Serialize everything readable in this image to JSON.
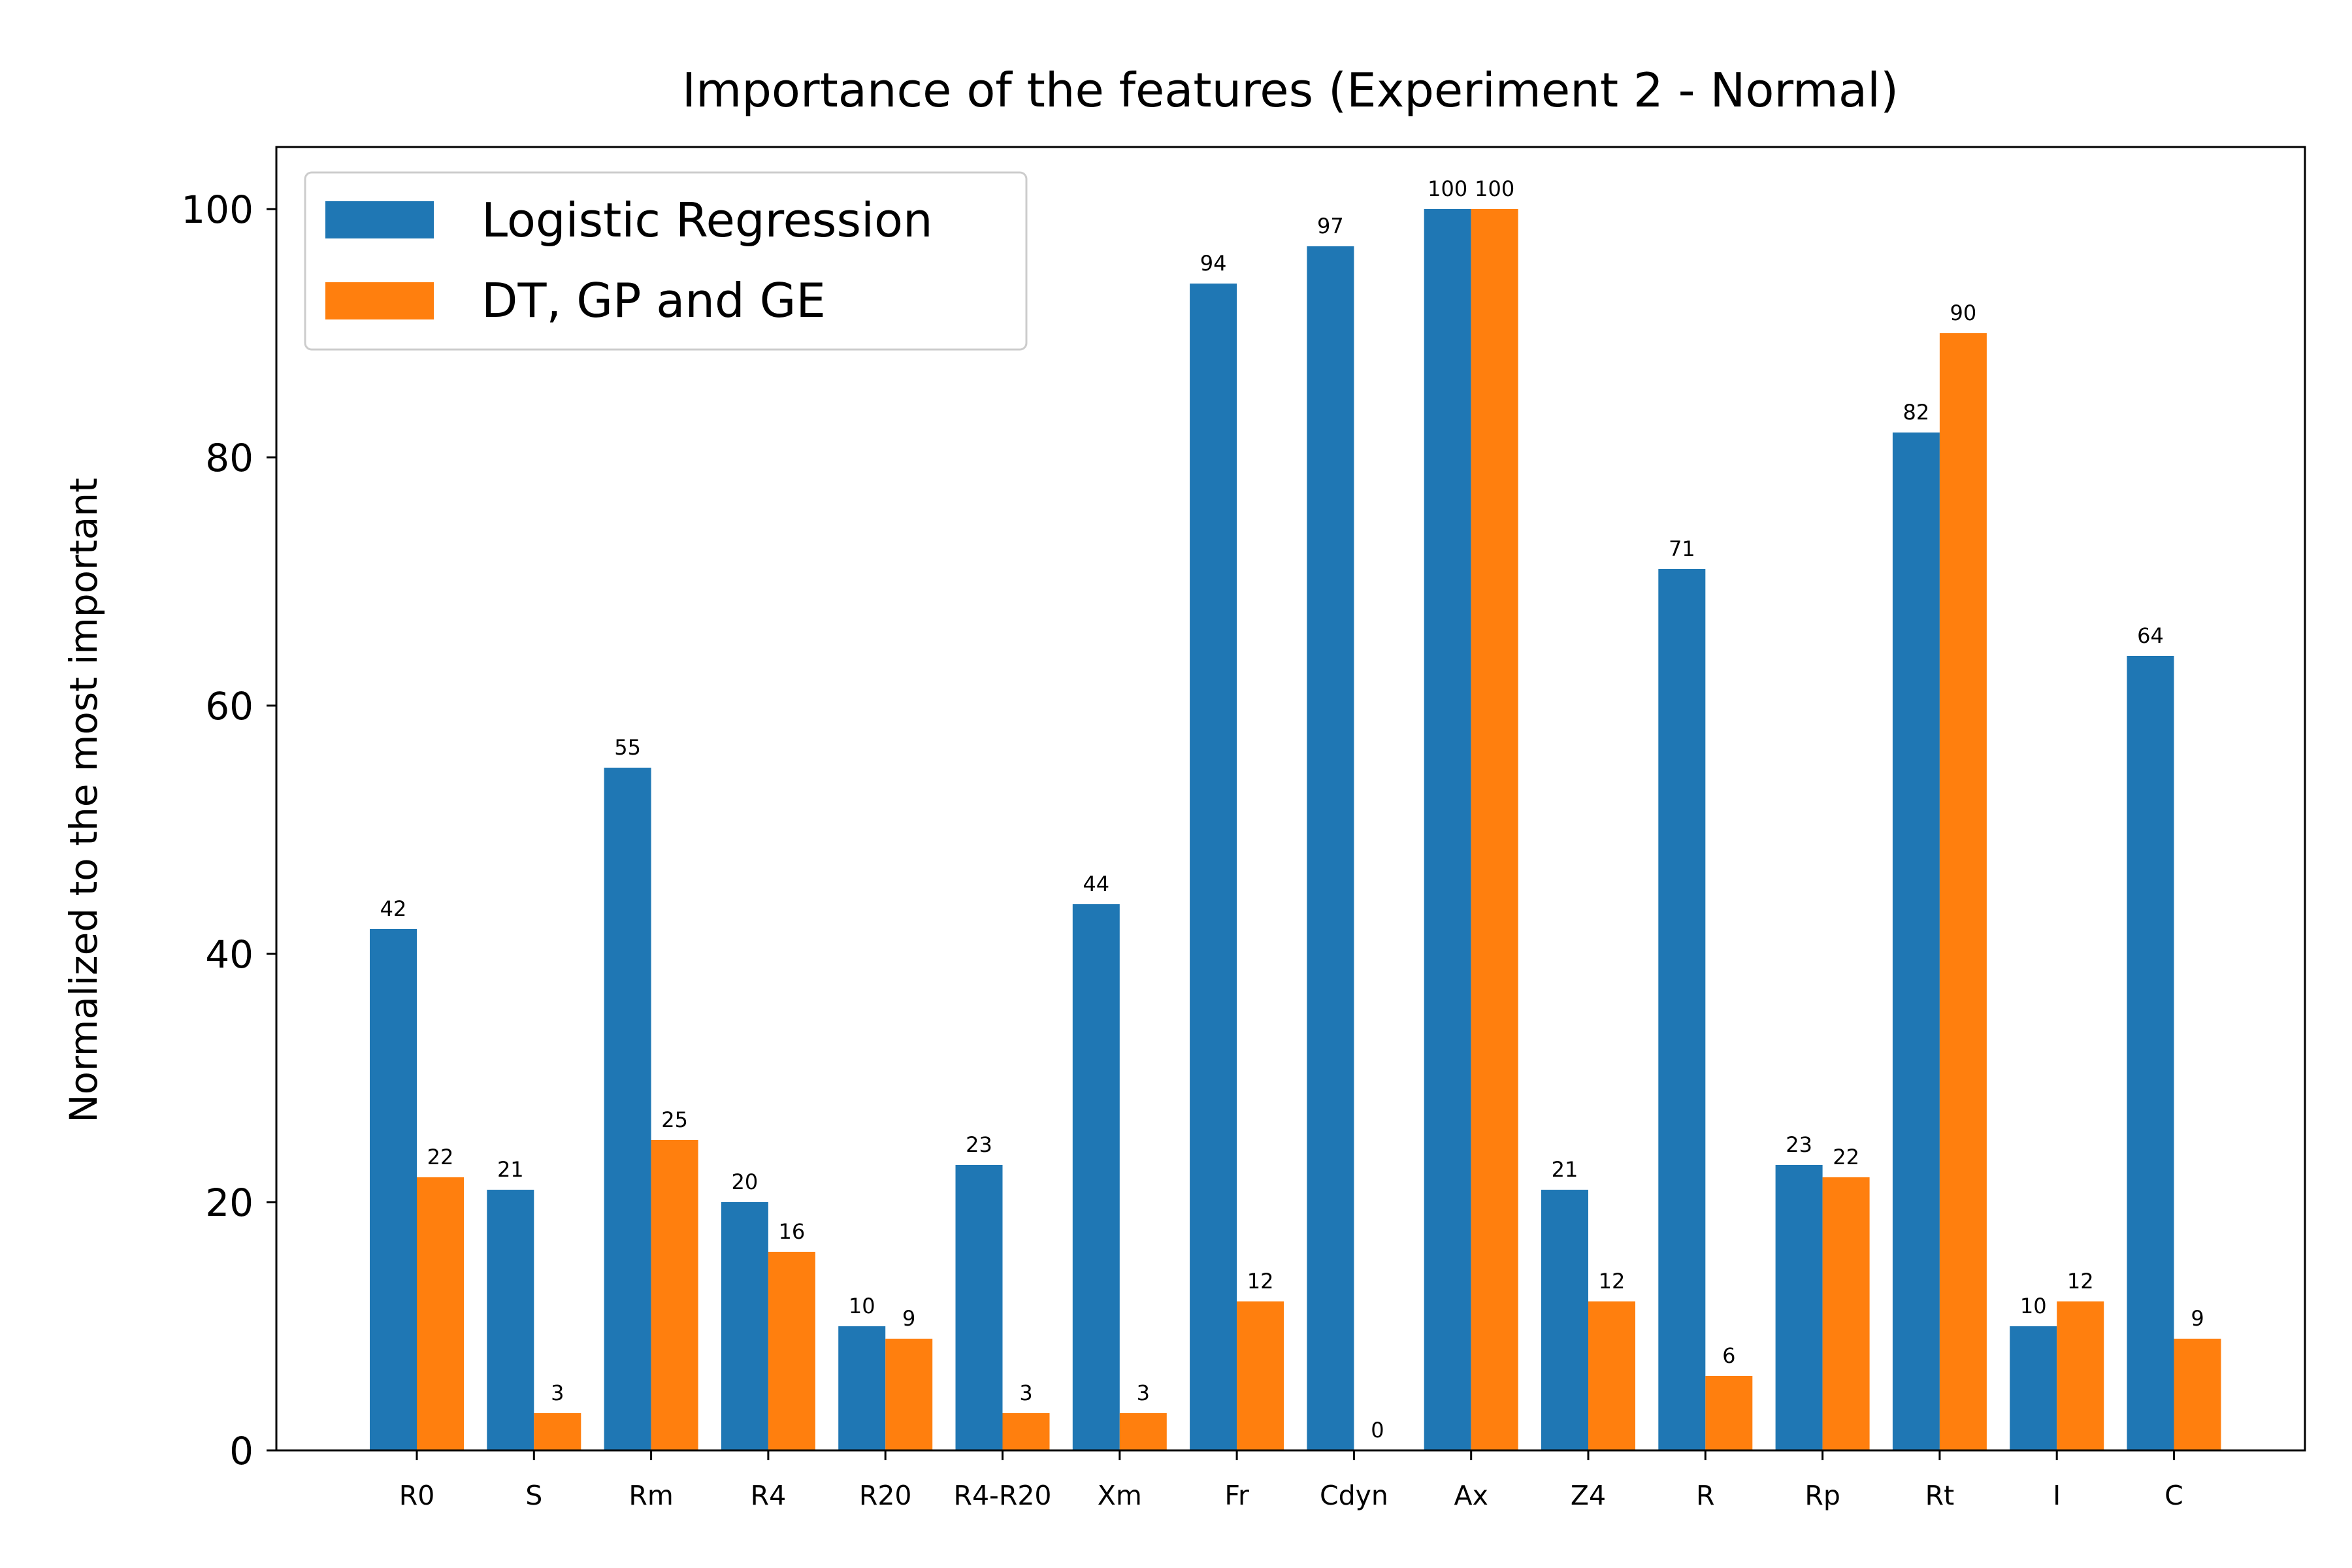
{
  "chart_data": {
    "type": "bar",
    "title": "Importance of the features (Experiment 2 - Normal)",
    "xlabel": "",
    "ylabel": "Normalized to the most important",
    "ylim": [
      0,
      105
    ],
    "yticks": [
      "0",
      "20",
      "40",
      "60",
      "80",
      "100"
    ],
    "grid": false,
    "legend_position": "top-left",
    "categories": [
      "R0",
      "S",
      "Rm",
      "R4",
      "R20",
      "R4-R20",
      "Xm",
      "Fr",
      "Cdyn",
      "Ax",
      "Z4",
      "R",
      "Rp",
      "Rt",
      "I",
      "C"
    ],
    "series": [
      {
        "name": "Logistic Regression",
        "color": "#1f77b4",
        "values": [
          42,
          21,
          55,
          20,
          10,
          23,
          44,
          94,
          97,
          100,
          21,
          71,
          23,
          82,
          10,
          64
        ]
      },
      {
        "name": "DT, GP and GE",
        "color": "#ff7f0e",
        "values": [
          22,
          3,
          25,
          16,
          9,
          3,
          3,
          12,
          0,
          100,
          12,
          6,
          22,
          90,
          12,
          9
        ]
      }
    ]
  }
}
